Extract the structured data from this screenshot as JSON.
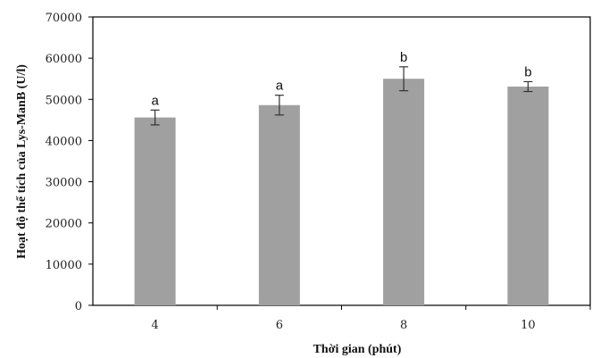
{
  "chart_data": {
    "type": "bar",
    "xlabel": "Thời gian (phút)",
    "ylabel": "Hoạt độ thể tích của Lys-ManB (U/l)",
    "categories": [
      "4",
      "6",
      "8",
      "10"
    ],
    "values": [
      45600,
      48600,
      55000,
      53100
    ],
    "errors": [
      1800,
      2400,
      2900,
      1200
    ],
    "significance": [
      "a",
      "a",
      "b",
      "b"
    ],
    "ylim": [
      0,
      70000
    ],
    "yticks": [
      0,
      10000,
      20000,
      30000,
      40000,
      50000,
      60000,
      70000
    ],
    "ytick_labels": [
      "0",
      "10000",
      "20000",
      "30000",
      "40000",
      "50000",
      "60000",
      "70000"
    ],
    "grid": false,
    "colors": {
      "bar": "#a0a0a0",
      "axis": "#000000",
      "error_bar": "#333333"
    }
  }
}
